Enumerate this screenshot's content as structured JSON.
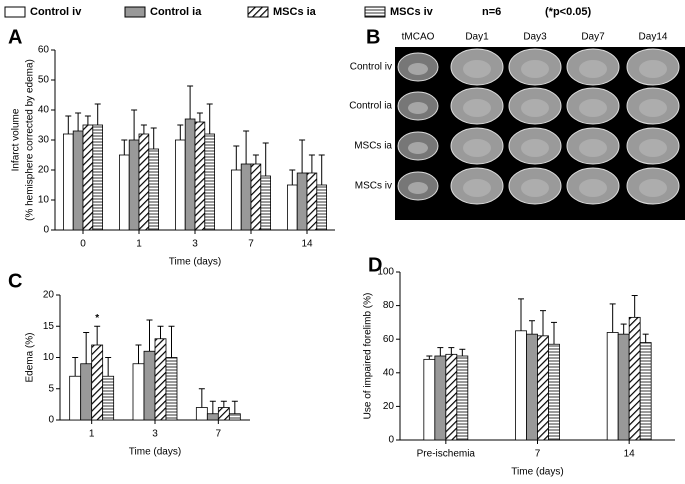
{
  "figure": {
    "notes": [
      "n=6",
      "(*p<0.05)"
    ]
  },
  "chart_data": [
    {
      "type": "bar",
      "panel": "A",
      "ylabel": [
        "Infarct volume",
        "(% hemisphere corrected by edema)"
      ],
      "xlabel": "Time (days)",
      "categories": [
        "0",
        "1",
        "3",
        "7",
        "14"
      ],
      "ylim": [
        0,
        60
      ],
      "yticks": [
        0,
        10,
        20,
        30,
        40,
        50,
        60
      ],
      "series": [
        {
          "name": "Control iv",
          "color": "#ffffff",
          "pattern": "solid",
          "values": [
            32,
            25,
            30,
            20,
            15
          ],
          "errors": [
            6,
            5,
            5,
            8,
            5
          ]
        },
        {
          "name": "Control ia",
          "color": "#999999",
          "pattern": "solid",
          "values": [
            33,
            30,
            37,
            22,
            19
          ],
          "errors": [
            6,
            10,
            11,
            11,
            11
          ]
        },
        {
          "name": "MSCs ia",
          "color": "#000000",
          "pattern": "diagonal",
          "values": [
            35,
            32,
            36,
            22,
            19
          ],
          "errors": [
            3,
            3,
            3,
            3,
            6
          ]
        },
        {
          "name": "MSCs iv",
          "color": "#000000",
          "pattern": "horizontal",
          "values": [
            35,
            27,
            32,
            18,
            15
          ],
          "errors": [
            7,
            7,
            10,
            11,
            10
          ]
        }
      ]
    },
    {
      "type": "bar",
      "panel": "C",
      "ylabel": [
        "Edema (%)"
      ],
      "xlabel": "Time (days)",
      "categories": [
        "1",
        "3",
        "7"
      ],
      "ylim": [
        0,
        20
      ],
      "yticks": [
        0,
        5,
        10,
        15,
        20
      ],
      "series": [
        {
          "name": "Control iv",
          "color": "#ffffff",
          "pattern": "solid",
          "values": [
            7,
            9,
            2
          ],
          "errors": [
            3,
            3,
            3
          ]
        },
        {
          "name": "Control ia",
          "color": "#999999",
          "pattern": "solid",
          "values": [
            9,
            11,
            1
          ],
          "errors": [
            5,
            5,
            2
          ]
        },
        {
          "name": "MSCs ia",
          "color": "#000000",
          "pattern": "diagonal",
          "values": [
            12,
            13,
            2
          ],
          "errors": [
            3,
            2,
            1
          ],
          "significance": [
            "*",
            null,
            null
          ]
        },
        {
          "name": "MSCs iv",
          "color": "#000000",
          "pattern": "horizontal",
          "values": [
            7,
            10,
            1
          ],
          "errors": [
            3,
            5,
            2
          ]
        }
      ]
    },
    {
      "type": "bar",
      "panel": "D",
      "ylabel": [
        "Use of impaired forelimb (%)"
      ],
      "xlabel": "Time (days)",
      "categories": [
        "Pre-ischemia",
        "7",
        "14"
      ],
      "ylim": [
        0,
        100
      ],
      "yticks": [
        0,
        20,
        40,
        60,
        80,
        100
      ],
      "series": [
        {
          "name": "Control iv",
          "color": "#ffffff",
          "pattern": "solid",
          "values": [
            48,
            65,
            64
          ],
          "errors": [
            2,
            19,
            17
          ]
        },
        {
          "name": "Control ia",
          "color": "#999999",
          "pattern": "solid",
          "values": [
            50,
            63,
            63
          ],
          "errors": [
            5,
            8,
            6
          ]
        },
        {
          "name": "MSCs ia",
          "color": "#000000",
          "pattern": "diagonal",
          "values": [
            51,
            62,
            73
          ],
          "errors": [
            4,
            15,
            13
          ]
        },
        {
          "name": "MSCs iv",
          "color": "#000000",
          "pattern": "horizontal",
          "values": [
            50,
            57,
            58
          ],
          "errors": [
            4,
            13,
            5
          ]
        }
      ]
    }
  ],
  "image_panel": {
    "panel": "B",
    "columns": [
      "tMCAO",
      "Day1",
      "Day3",
      "Day7",
      "Day14"
    ],
    "rows": [
      "Control iv",
      "Control ia",
      "MSCs ia",
      "MSCs iv"
    ]
  }
}
